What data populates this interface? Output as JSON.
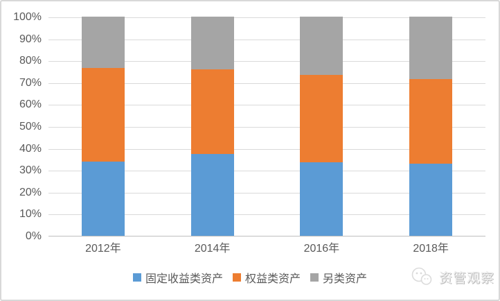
{
  "chart_data": {
    "type": "bar",
    "subtype": "stacked-100-percent",
    "title": "",
    "xlabel": "",
    "ylabel": "",
    "categories": [
      "2012年",
      "2014年",
      "2016年",
      "2018年"
    ],
    "series": [
      {
        "name": "固定收益类资产",
        "color": "#5B9BD5",
        "values": [
          34,
          37.5,
          33.5,
          33
        ]
      },
      {
        "name": "权益类资产",
        "color": "#ED7D31",
        "values": [
          42.5,
          38.5,
          40,
          38.5
        ]
      },
      {
        "name": "另类资产",
        "color": "#A5A5A5",
        "values": [
          23.5,
          24,
          26.5,
          28.5
        ]
      }
    ],
    "ylim": [
      0,
      100
    ],
    "ytick_labels": [
      "0%",
      "10%",
      "20%",
      "30%",
      "40%",
      "50%",
      "60%",
      "70%",
      "80%",
      "90%",
      "100%"
    ],
    "grid": true,
    "legend_position": "bottom",
    "colors": {
      "gridline": "#D9D9D9",
      "axis_line": "#BFBFBF",
      "tick_text": "#595959",
      "background": "#FFFFFF",
      "frame_border": "#D8D8D8"
    }
  },
  "watermark": {
    "text": "资管观察",
    "logo": "panda-circles-icon"
  }
}
